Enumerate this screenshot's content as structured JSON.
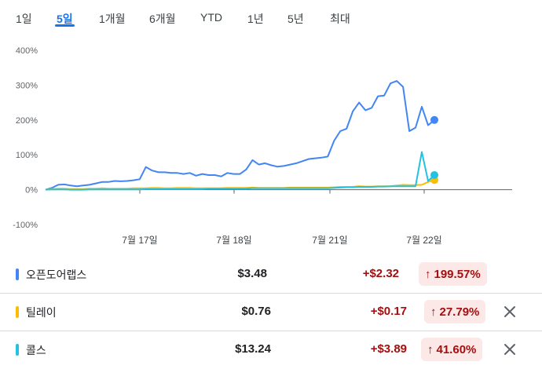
{
  "tabs": [
    {
      "label": "1일",
      "active": false
    },
    {
      "label": "5일",
      "active": true
    },
    {
      "label": "1개월",
      "active": false
    },
    {
      "label": "6개월",
      "active": false
    },
    {
      "label": "YTD",
      "active": false
    },
    {
      "label": "1년",
      "active": false
    },
    {
      "label": "5년",
      "active": false
    },
    {
      "label": "최대",
      "active": false
    }
  ],
  "chart_data": {
    "type": "line",
    "y_unit": "%",
    "y_ticks": [
      "400%",
      "300%",
      "200%",
      "100%",
      "0%",
      "-100%"
    ],
    "ylim": [
      -100,
      400
    ],
    "x_ticks": [
      "7월 17일",
      "7월 18일",
      "7월 21일",
      "7월 22일"
    ],
    "grid": false,
    "series": [
      {
        "name": "오픈도어랩스",
        "color": "#4285f4",
        "values": [
          0,
          5,
          14,
          15,
          12,
          10,
          12,
          14,
          18,
          22,
          22,
          25,
          24,
          25,
          27,
          30,
          65,
          55,
          50,
          50,
          48,
          48,
          45,
          48,
          40,
          45,
          42,
          42,
          38,
          48,
          45,
          45,
          58,
          85,
          72,
          76,
          70,
          66,
          68,
          72,
          76,
          82,
          88,
          90,
          92,
          95,
          140,
          168,
          175,
          225,
          250,
          228,
          235,
          268,
          270,
          305,
          312,
          295,
          168,
          178,
          238,
          185,
          200
        ]
      },
      {
        "name": "틸레이",
        "color": "#fbbc04",
        "values": [
          0,
          2,
          3,
          3,
          2,
          2,
          2,
          3,
          3,
          4,
          3,
          3,
          3,
          3,
          4,
          4,
          4,
          5,
          5,
          4,
          4,
          5,
          5,
          5,
          4,
          4,
          4,
          4,
          4,
          5,
          5,
          5,
          5,
          6,
          5,
          5,
          5,
          5,
          5,
          6,
          6,
          6,
          6,
          6,
          6,
          6,
          7,
          8,
          8,
          8,
          10,
          9,
          9,
          10,
          10,
          10,
          12,
          14,
          13,
          13,
          14,
          22,
          28
        ]
      },
      {
        "name": "콜스",
        "color": "#24c1e0",
        "values": [
          0,
          1,
          1,
          1,
          0,
          0,
          0,
          1,
          1,
          1,
          1,
          1,
          1,
          1,
          1,
          1,
          2,
          2,
          2,
          2,
          2,
          2,
          2,
          2,
          2,
          2,
          3,
          3,
          3,
          3,
          3,
          3,
          3,
          4,
          4,
          4,
          4,
          4,
          4,
          4,
          4,
          4,
          4,
          4,
          4,
          4,
          5,
          6,
          7,
          7,
          8,
          8,
          8,
          9,
          9,
          10,
          10,
          10,
          10,
          10,
          108,
          25,
          42
        ]
      }
    ]
  },
  "rows": [
    {
      "name": "오픈도어랩스",
      "color": "#4285f4",
      "price": "$3.48",
      "change": "+$2.32",
      "percent": "199.57%",
      "arrow": "↑",
      "removable": false
    },
    {
      "name": "틸레이",
      "color": "#fbbc04",
      "price": "$0.76",
      "change": "+$0.17",
      "percent": "27.79%",
      "arrow": "↑",
      "removable": true
    },
    {
      "name": "콜스",
      "color": "#24c1e0",
      "price": "$13.24",
      "change": "+$3.89",
      "percent": "41.60%",
      "arrow": "↑",
      "removable": true
    }
  ],
  "icons": {
    "remove": "close-icon",
    "change_direction": "arrow-up-icon"
  }
}
